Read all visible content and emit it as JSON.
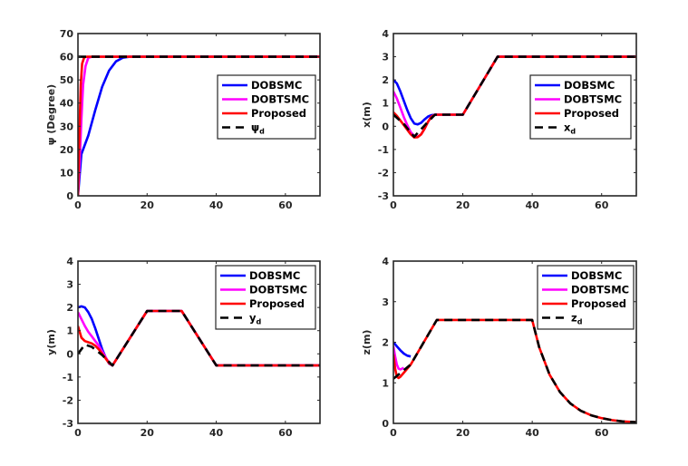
{
  "chart_data": [
    {
      "type": "line",
      "ylabel": "ψ (Degree)",
      "xlim": [
        0,
        70
      ],
      "ylim": [
        0,
        70
      ],
      "xticks": [
        "0",
        "20",
        "40",
        "60"
      ],
      "yticks": [
        "0",
        "10",
        "20",
        "30",
        "40",
        "50",
        "60",
        "70"
      ],
      "legend": {
        "position": "right-center",
        "entries": [
          "DOBSMC",
          "DOBTSMC",
          "Proposed",
          "ψd"
        ]
      },
      "series": [
        {
          "name": "DOBSMC",
          "color": "#0000ff",
          "x": [
            0,
            1,
            3,
            5,
            7,
            9,
            11,
            13,
            15,
            70
          ],
          "y": [
            0,
            18,
            26,
            37,
            47,
            54,
            58,
            59.6,
            60,
            60
          ]
        },
        {
          "name": "DOBTSMC",
          "color": "#ff00ff",
          "x": [
            0,
            0.5,
            1,
            1.5,
            2.2,
            3,
            4,
            70
          ],
          "y": [
            0,
            15,
            33,
            48,
            56,
            59.5,
            60,
            60
          ]
        },
        {
          "name": "Proposed",
          "color": "#ff0000",
          "x": [
            0,
            0.4,
            0.8,
            1.2,
            1.8,
            2.5,
            70
          ],
          "y": [
            0,
            25,
            48,
            57,
            59.7,
            60,
            60
          ]
        },
        {
          "name": "ψd",
          "color": "#000000",
          "dashed": true,
          "x": [
            0,
            70
          ],
          "y": [
            60,
            60
          ]
        }
      ]
    },
    {
      "type": "line",
      "ylabel": "x(m)",
      "xlim": [
        0,
        70
      ],
      "ylim": [
        -3,
        4
      ],
      "xticks": [
        "0",
        "20",
        "40",
        "60"
      ],
      "yticks": [
        "-3",
        "-2",
        "-1",
        "0",
        "1",
        "2",
        "3",
        "4"
      ],
      "legend": {
        "position": "top-right",
        "entries": [
          "DOBSMC",
          "DOBTSMC",
          "Proposed",
          "xd"
        ]
      },
      "series": [
        {
          "name": "DOBSMC",
          "color": "#0000ff",
          "x": [
            0,
            1,
            2,
            3,
            4,
            5,
            6,
            7,
            8,
            9,
            10,
            11,
            12,
            20,
            30,
            70
          ],
          "y": [
            2,
            1.85,
            1.5,
            1.1,
            0.7,
            0.35,
            0.12,
            0.08,
            0.15,
            0.3,
            0.42,
            0.48,
            0.5,
            0.5,
            3,
            3
          ]
        },
        {
          "name": "DOBTSMC",
          "color": "#ff00ff",
          "x": [
            0,
            1,
            2,
            3,
            4,
            5,
            6,
            7,
            8,
            9,
            10,
            11,
            12,
            20,
            30,
            70
          ],
          "y": [
            1.5,
            1.2,
            0.8,
            0.4,
            0.05,
            -0.25,
            -0.42,
            -0.45,
            -0.35,
            -0.1,
            0.2,
            0.42,
            0.5,
            0.5,
            3,
            3
          ]
        },
        {
          "name": "Proposed",
          "color": "#ff0000",
          "x": [
            0,
            1,
            2,
            3,
            4,
            5,
            6,
            7,
            8,
            9,
            10,
            11,
            12,
            20,
            30,
            70
          ],
          "y": [
            0.6,
            0.45,
            0.25,
            0.05,
            -0.15,
            -0.35,
            -0.48,
            -0.47,
            -0.35,
            -0.1,
            0.2,
            0.42,
            0.5,
            0.5,
            3,
            3
          ]
        },
        {
          "name": "xd",
          "color": "#000000",
          "dashed": true,
          "x": [
            0,
            3,
            6,
            10,
            12,
            20,
            30,
            70
          ],
          "y": [
            0.5,
            0.1,
            -0.45,
            0.2,
            0.5,
            0.5,
            3,
            3
          ]
        }
      ]
    },
    {
      "type": "line",
      "ylabel": "y(m)",
      "xlim": [
        0,
        70
      ],
      "ylim": [
        -3,
        4
      ],
      "xticks": [
        "0",
        "20",
        "40",
        "60"
      ],
      "yticks": [
        "-3",
        "-2",
        "-1",
        "0",
        "1",
        "2",
        "3",
        "4"
      ],
      "legend": {
        "position": "top-right",
        "entries": [
          "DOBSMC",
          "DOBTSMC",
          "Proposed",
          "yd"
        ]
      },
      "series": [
        {
          "name": "DOBSMC",
          "color": "#0000ff",
          "x": [
            0,
            1,
            2,
            3,
            4,
            5,
            6,
            7,
            8,
            9,
            10,
            20,
            30,
            40,
            70
          ],
          "y": [
            2,
            2.05,
            2,
            1.8,
            1.5,
            1.1,
            0.65,
            0.2,
            -0.15,
            -0.42,
            -0.5,
            1.85,
            1.85,
            -0.5,
            -0.5
          ]
        },
        {
          "name": "DOBTSMC",
          "color": "#ff00ff",
          "x": [
            0,
            1,
            2,
            3,
            4,
            5,
            6,
            7,
            8,
            9,
            10,
            20,
            30,
            40,
            70
          ],
          "y": [
            1.8,
            1.5,
            1.2,
            0.95,
            0.75,
            0.55,
            0.35,
            0.1,
            -0.15,
            -0.38,
            -0.5,
            1.85,
            1.85,
            -0.5,
            -0.5
          ]
        },
        {
          "name": "Proposed",
          "color": "#ff0000",
          "x": [
            0,
            1,
            2,
            3,
            4,
            5,
            6,
            7,
            8,
            9,
            10,
            20,
            30,
            40,
            70
          ],
          "y": [
            1.2,
            0.7,
            0.55,
            0.5,
            0.45,
            0.35,
            0.2,
            0,
            -0.2,
            -0.4,
            -0.5,
            1.85,
            1.85,
            -0.5,
            -0.5
          ]
        },
        {
          "name": "yd",
          "color": "#000000",
          "dashed": true,
          "x": [
            0,
            2,
            4,
            7,
            10,
            20,
            30,
            40,
            70
          ],
          "y": [
            0,
            0.4,
            0.3,
            -0.05,
            -0.5,
            1.85,
            1.85,
            -0.5,
            -0.5
          ]
        }
      ]
    },
    {
      "type": "line",
      "ylabel": "z(m)",
      "xlim": [
        0,
        70
      ],
      "ylim": [
        0,
        4
      ],
      "xticks": [
        "0",
        "20",
        "40",
        "60"
      ],
      "yticks": [
        "0",
        "1",
        "2",
        "3",
        "4"
      ],
      "legend": {
        "position": "top-right",
        "entries": [
          "DOBSMC",
          "DOBTSMC",
          "Proposed",
          "zd"
        ]
      },
      "series": [
        {
          "name": "DOBSMC",
          "color": "#0000ff",
          "x": [
            0,
            1,
            2,
            3,
            4,
            5
          ],
          "y": [
            2,
            1.9,
            1.8,
            1.72,
            1.67,
            1.65
          ]
        },
        {
          "name": "DOBTSMC",
          "color": "#ff00ff",
          "x": [
            0,
            0.5,
            1,
            1.5,
            2,
            3
          ],
          "y": [
            1.9,
            1.65,
            1.45,
            1.35,
            1.33,
            1.37
          ]
        },
        {
          "name": "Proposed",
          "color": "#ff0000",
          "x": [
            0,
            0.5,
            1,
            1.5,
            2,
            3,
            4,
            5,
            12.5,
            40,
            42,
            45,
            48,
            51,
            54,
            57,
            60,
            63,
            66,
            70
          ],
          "y": [
            1.7,
            1.35,
            1.15,
            1.12,
            1.15,
            1.25,
            1.35,
            1.45,
            2.55,
            2.55,
            1.88,
            1.2,
            0.77,
            0.49,
            0.31,
            0.2,
            0.13,
            0.08,
            0.05,
            0.03
          ]
        },
        {
          "name": "zd",
          "color": "#000000",
          "dashed": true,
          "x": [
            0,
            5,
            12.5,
            40,
            42,
            45,
            48,
            51,
            54,
            57,
            60,
            63,
            66,
            70
          ],
          "y": [
            1.1,
            1.45,
            2.55,
            2.55,
            1.88,
            1.2,
            0.77,
            0.49,
            0.31,
            0.2,
            0.13,
            0.08,
            0.05,
            0.03
          ]
        }
      ]
    }
  ]
}
